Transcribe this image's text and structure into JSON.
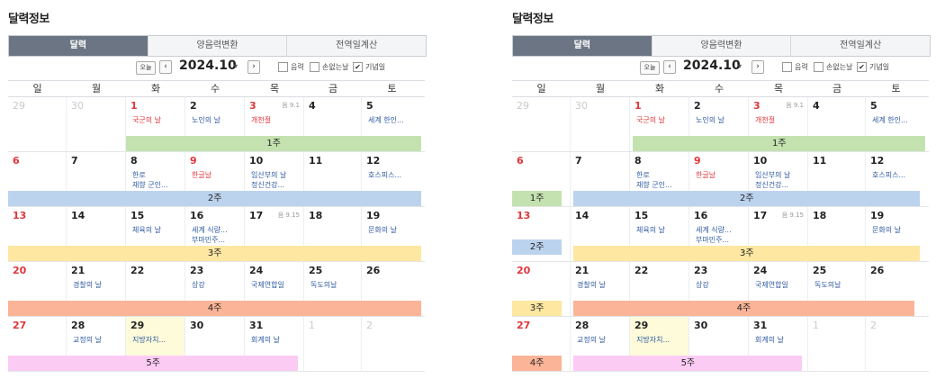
{
  "panels": [
    {
      "title": "달력정보",
      "tabs": [
        {
          "label": "달력",
          "active": true
        },
        {
          "label": "양음력변환",
          "active": false
        },
        {
          "label": "전역일계산",
          "active": false
        }
      ],
      "toolbar": {
        "today_label": "오늘",
        "prev": "‹",
        "next": "›",
        "month": "2024.10",
        "caret": "▾",
        "options": [
          {
            "label": "음력",
            "checked": false
          },
          {
            "label": "손없는날",
            "checked": false
          },
          {
            "label": "기념일",
            "checked": true
          }
        ]
      },
      "weekdays": [
        "일",
        "월",
        "화",
        "수",
        "목",
        "금",
        "토"
      ],
      "weeks": [
        [
          {
            "d": "29",
            "cls": "other"
          },
          {
            "d": "30",
            "cls": "other"
          },
          {
            "d": "1",
            "cls": "hol",
            "ev": "국군의 날",
            "evc": "red"
          },
          {
            "d": "2",
            "ev": "노인의 날"
          },
          {
            "d": "3",
            "cls": "hol",
            "ev": "개천절",
            "evc": "red",
            "lunar": "음 9.1"
          },
          {
            "d": "4"
          },
          {
            "d": "5",
            "ev": "세계 한인..."
          }
        ],
        [
          {
            "d": "6",
            "cls": "sun"
          },
          {
            "d": "7"
          },
          {
            "d": "8",
            "ev": "한로\n재향 군인..."
          },
          {
            "d": "9",
            "cls": "hol",
            "ev": "한글날",
            "evc": "red"
          },
          {
            "d": "10",
            "ev": "임산부의 날\n정신건강..."
          },
          {
            "d": "11"
          },
          {
            "d": "12",
            "ev": "호스피스..."
          }
        ],
        [
          {
            "d": "13",
            "cls": "sun"
          },
          {
            "d": "14"
          },
          {
            "d": "15",
            "ev": "체육의 날"
          },
          {
            "d": "16",
            "ev": "세계 식량...\n부마민주..."
          },
          {
            "d": "17",
            "lunar": "음 9.15"
          },
          {
            "d": "18"
          },
          {
            "d": "19",
            "ev": "문화의 날"
          }
        ],
        [
          {
            "d": "20",
            "cls": "sun"
          },
          {
            "d": "21",
            "ev": "경찰의 날"
          },
          {
            "d": "22"
          },
          {
            "d": "23",
            "ev": "상강"
          },
          {
            "d": "24",
            "ev": "국제연합일"
          },
          {
            "d": "25",
            "ev": "독도의날"
          },
          {
            "d": "26"
          }
        ],
        [
          {
            "d": "27",
            "cls": "sun"
          },
          {
            "d": "28",
            "ev": "교정의 날"
          },
          {
            "d": "29",
            "today": true,
            "ev": "지방자치..."
          },
          {
            "d": "30"
          },
          {
            "d": "31",
            "ev": "회계의 날"
          },
          {
            "d": "1",
            "cls": "other"
          },
          {
            "d": "2",
            "cls": "other"
          }
        ]
      ],
      "bars": [
        {
          "label": "1주",
          "color": "#c4e2b0",
          "week": 0,
          "from": 2,
          "to": 6.99,
          "row": "low"
        },
        {
          "label": "2주",
          "color": "#bcd3ee",
          "week": 1,
          "from": 0,
          "to": 6.99,
          "row": "low"
        },
        {
          "label": "3주",
          "color": "#fde7a1",
          "week": 2,
          "from": 0,
          "to": 6.99,
          "row": "low"
        },
        {
          "label": "4주",
          "color": "#fbb497",
          "week": 3,
          "from": 0,
          "to": 6.99,
          "row": "low"
        },
        {
          "label": "5주",
          "color": "#fccbf4",
          "week": 4,
          "from": 0,
          "to": 4.9,
          "row": "low"
        }
      ]
    },
    {
      "title": "달력정보",
      "tabs": [
        {
          "label": "달력",
          "active": true
        },
        {
          "label": "양음력변환",
          "active": false
        },
        {
          "label": "전역일계산",
          "active": false
        }
      ],
      "toolbar": {
        "today_label": "오늘",
        "prev": "‹",
        "next": "›",
        "month": "2024.10",
        "caret": "▾",
        "options": [
          {
            "label": "음력",
            "checked": false
          },
          {
            "label": "손없는날",
            "checked": false
          },
          {
            "label": "기념일",
            "checked": true
          }
        ]
      },
      "weekdays": [
        "일",
        "월",
        "화",
        "수",
        "목",
        "금",
        "토"
      ],
      "weeks": [
        [
          {
            "d": "29",
            "cls": "other"
          },
          {
            "d": "30",
            "cls": "other"
          },
          {
            "d": "1",
            "cls": "hol",
            "ev": "국군의 날",
            "evc": "red"
          },
          {
            "d": "2",
            "ev": "노인의 날"
          },
          {
            "d": "3",
            "cls": "hol",
            "ev": "개천절",
            "evc": "red",
            "lunar": "음 9.1"
          },
          {
            "d": "4"
          },
          {
            "d": "5",
            "ev": "세계 한인..."
          }
        ],
        [
          {
            "d": "6",
            "cls": "sun"
          },
          {
            "d": "7"
          },
          {
            "d": "8",
            "ev": "한로\n재향 군인..."
          },
          {
            "d": "9",
            "cls": "hol",
            "ev": "한글날",
            "evc": "red"
          },
          {
            "d": "10",
            "ev": "임산부의 날\n정신건강..."
          },
          {
            "d": "11"
          },
          {
            "d": "12",
            "ev": "호스피스..."
          }
        ],
        [
          {
            "d": "13",
            "cls": "sun"
          },
          {
            "d": "14"
          },
          {
            "d": "15",
            "ev": "체육의 날"
          },
          {
            "d": "16",
            "ev": "세계 식량...\n부마민주..."
          },
          {
            "d": "17",
            "lunar": "음 9.15"
          },
          {
            "d": "18"
          },
          {
            "d": "19",
            "ev": "문화의 날"
          }
        ],
        [
          {
            "d": "20",
            "cls": "sun"
          },
          {
            "d": "21",
            "ev": "경찰의 날"
          },
          {
            "d": "22"
          },
          {
            "d": "23",
            "ev": "상강"
          },
          {
            "d": "24",
            "ev": "국제연합일"
          },
          {
            "d": "25",
            "ev": "독도의날"
          },
          {
            "d": "26"
          }
        ],
        [
          {
            "d": "27",
            "cls": "sun"
          },
          {
            "d": "28",
            "ev": "교정의 날"
          },
          {
            "d": "29",
            "today": true,
            "ev": "지방자치..."
          },
          {
            "d": "30"
          },
          {
            "d": "31",
            "ev": "회계의 날"
          },
          {
            "d": "1",
            "cls": "other"
          },
          {
            "d": "2",
            "cls": "other"
          }
        ]
      ],
      "bars": [
        {
          "label": "1주",
          "color": "#c4e2b0",
          "week": 0,
          "from": 2.05,
          "to": 6.99,
          "row": "low"
        },
        {
          "label": "1주",
          "color": "#c4e2b0",
          "week": 1,
          "from": 0,
          "to": 0.85,
          "row": "low"
        },
        {
          "label": "2주",
          "color": "#bcd3ee",
          "week": 1,
          "from": 1.05,
          "to": 6.9,
          "row": "low"
        },
        {
          "label": "2주",
          "color": "#bcd3ee",
          "week": 2,
          "from": 0,
          "to": 0.85,
          "row": "mid"
        },
        {
          "label": "3주",
          "color": "#fde7a1",
          "week": 2,
          "from": 1.05,
          "to": 6.9,
          "row": "low"
        },
        {
          "label": "3주",
          "color": "#fde7a1",
          "week": 3,
          "from": 0,
          "to": 0.85,
          "row": "low"
        },
        {
          "label": "4주",
          "color": "#fbb497",
          "week": 3,
          "from": 1.05,
          "to": 6.8,
          "row": "low"
        },
        {
          "label": "4주",
          "color": "#fbb497",
          "week": 4,
          "from": 0,
          "to": 0.85,
          "row": "low"
        },
        {
          "label": "5주",
          "color": "#fccbf4",
          "week": 4,
          "from": 1.05,
          "to": 4.9,
          "row": "low"
        }
      ]
    }
  ]
}
